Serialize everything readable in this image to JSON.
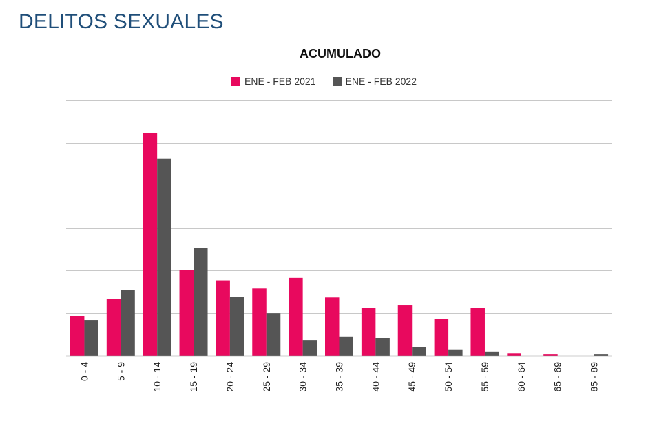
{
  "page": {
    "title": "DELITOS SEXUALES"
  },
  "chart_data": {
    "type": "bar",
    "title": "ACUMULADO",
    "xlabel": "",
    "ylabel": "",
    "categories": [
      "0 - 4",
      "5 - 9",
      "10 - 14",
      "15 - 19",
      "20 - 24",
      "25 - 29",
      "30 - 34",
      "35 - 39",
      "40 - 44",
      "45 - 49",
      "50 - 54",
      "55 - 59",
      "60 - 64",
      "65 - 69",
      "85 - 89"
    ],
    "series": [
      {
        "name": "ENE - FEB 2021",
        "color": "#e8095e",
        "values": [
          9.3,
          13.4,
          52.4,
          20.2,
          17.7,
          15.8,
          18.3,
          13.7,
          11.2,
          11.8,
          8.6,
          11.2,
          0.6,
          0.3,
          0.0
        ]
      },
      {
        "name": "ENE - FEB 2022",
        "color": "#555555",
        "values": [
          8.4,
          15.4,
          46.3,
          25.3,
          13.9,
          10.0,
          3.7,
          4.4,
          4.2,
          2.0,
          1.5,
          1.0,
          0.0,
          0.0,
          0.3
        ]
      }
    ],
    "ylim": [
      0,
      60
    ],
    "gridlines": [
      0,
      10,
      20,
      30,
      40,
      50,
      60
    ],
    "grid": true,
    "y_tick_labels": false,
    "legend_position": "top-center"
  }
}
